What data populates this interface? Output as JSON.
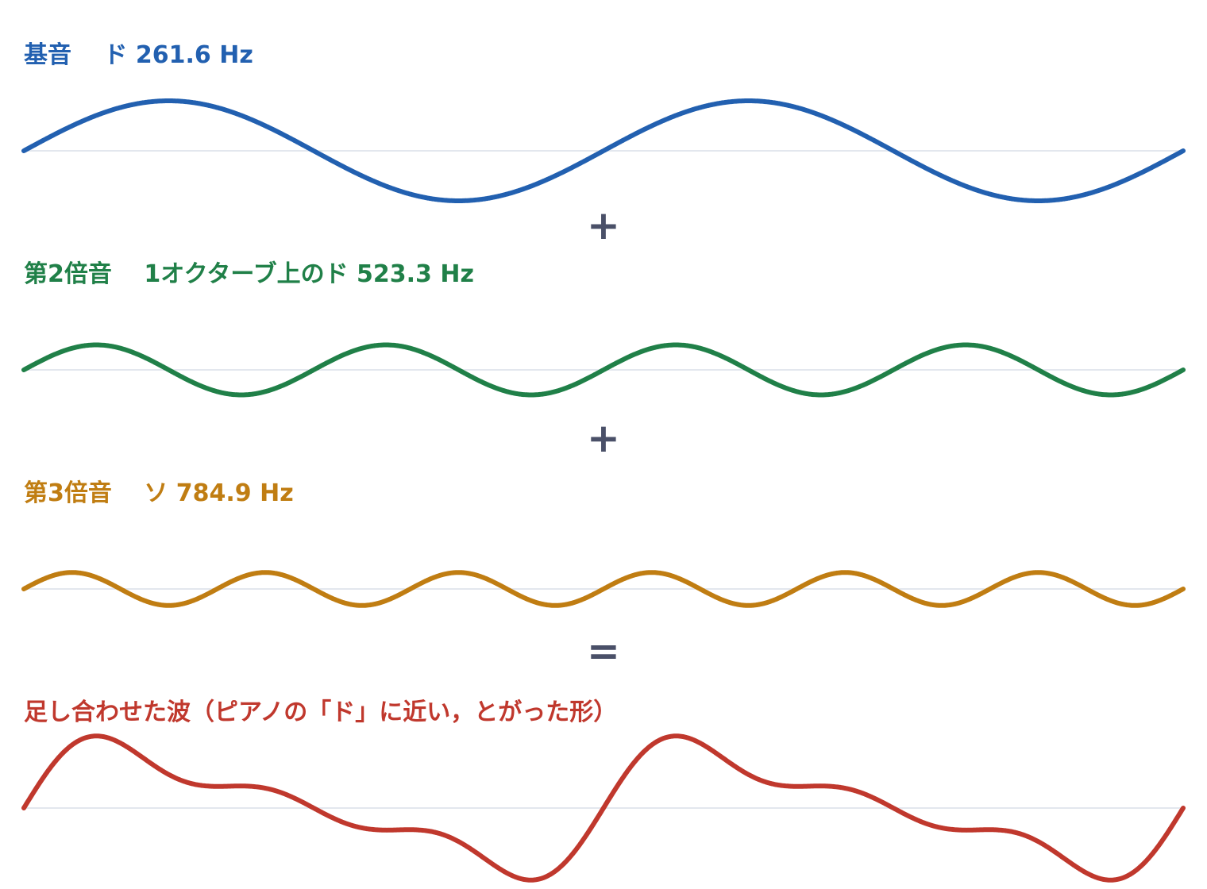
{
  "rows": [
    {
      "title": "基音　 ド 261.6 Hz",
      "color": "#2260b0",
      "harmonics": [
        {
          "multiple": 1,
          "amplitude": 1.0
        }
      ]
    },
    {
      "title": "第2倍音　 1オクターブ上のド 523.3 Hz",
      "color": "#208048",
      "harmonics": [
        {
          "multiple": 2,
          "amplitude": 0.5
        }
      ]
    },
    {
      "title": "第3倍音　 ソ 784.9 Hz",
      "color": "#c07d12",
      "harmonics": [
        {
          "multiple": 3,
          "amplitude": 0.33
        }
      ]
    },
    {
      "title": "足し合わせた波（ピアノの「ド」に近い，とがった形）",
      "color": "#c0382d",
      "harmonics": [
        {
          "multiple": 1,
          "amplitude": 1.0
        },
        {
          "multiple": 2,
          "amplitude": 0.5
        },
        {
          "multiple": 3,
          "amplitude": 0.33
        }
      ]
    }
  ],
  "operators": [
    "+",
    "+",
    "="
  ],
  "periods_shown": 2,
  "baseline_color": "#e3e7ee"
}
